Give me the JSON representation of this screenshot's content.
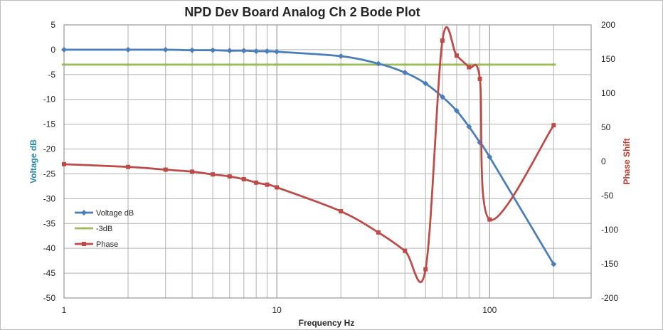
{
  "chart_data": {
    "type": "line",
    "title": "NPD Dev Board Analog Ch 2 Bode Plot",
    "xlabel": "Frequency Hz",
    "ylabel": "Voltage dB",
    "y2label": "Phase Shift",
    "xscale": "log",
    "xlim": [
      1,
      300
    ],
    "ylim": [
      -50,
      5
    ],
    "y2lim": [
      -200,
      200
    ],
    "x_ticks": [
      "1",
      "10",
      "100"
    ],
    "y_ticks": [
      "5",
      "0",
      "-5",
      "-10",
      "-15",
      "-20",
      "-25",
      "-30",
      "-35",
      "-40",
      "-45",
      "-50"
    ],
    "y2_ticks": [
      "200",
      "150",
      "100",
      "50",
      "0",
      "-50",
      "-100",
      "-150",
      "-200"
    ],
    "grid": true,
    "legend_position": "lower-left",
    "series": [
      {
        "name": "Voltage dB",
        "axis": "left",
        "color": "#4a7ebb",
        "marker": "diamond",
        "x": [
          1,
          2,
          3,
          4,
          5,
          6,
          7,
          8,
          9,
          10,
          20,
          30,
          40,
          50,
          60,
          70,
          80,
          90,
          100,
          200
        ],
        "y": [
          0,
          0,
          0,
          -0.1,
          -0.1,
          -0.2,
          -0.2,
          -0.3,
          -0.3,
          -0.4,
          -1.3,
          -2.8,
          -4.6,
          -6.8,
          -9.5,
          -12.3,
          -15.5,
          -18.7,
          -21.6,
          -43.2
        ]
      },
      {
        "name": "-3dB",
        "axis": "left",
        "color": "#9bbb59",
        "marker": "dash",
        "x": [
          1,
          2,
          3,
          4,
          5,
          6,
          7,
          8,
          9,
          10,
          20,
          30,
          40,
          50,
          60,
          70,
          80,
          90,
          100,
          200
        ],
        "y": [
          -3,
          -3,
          -3,
          -3,
          -3,
          -3,
          -3,
          -3,
          -3,
          -3,
          -3,
          -3,
          -3,
          -3,
          -3,
          -3,
          -3,
          -3,
          -3,
          -3
        ]
      },
      {
        "name": "Phase",
        "axis": "right",
        "color": "#be4b48",
        "marker": "square",
        "x": [
          1,
          2,
          3,
          4,
          5,
          6,
          7,
          8,
          9,
          10,
          20,
          30,
          40,
          50,
          60,
          70,
          80,
          90,
          100,
          200
        ],
        "y": [
          -4,
          -8,
          -12,
          -15,
          -19,
          -22,
          -26,
          -31,
          -34,
          -38,
          -73,
          -104,
          -131,
          -158,
          177,
          155,
          138,
          121,
          -85,
          53
        ]
      }
    ]
  }
}
